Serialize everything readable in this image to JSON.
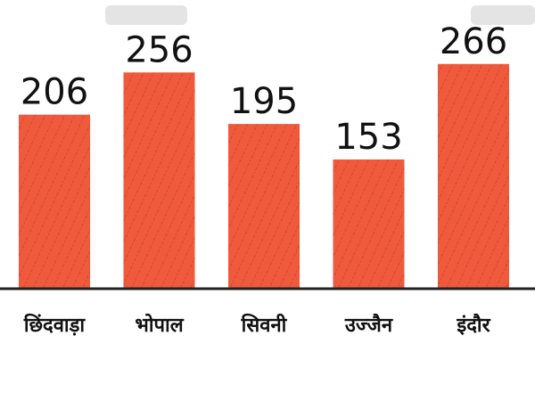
{
  "chart_data": {
    "type": "bar",
    "categories": [
      "छिंदवाड़ा",
      "भोपाल",
      "सिवनी",
      "उज्जैन",
      "इंदौर"
    ],
    "values": [
      206,
      256,
      195,
      153,
      266
    ],
    "ylim": [
      0,
      270
    ],
    "grid": false,
    "legend": "none",
    "data_labels": true,
    "bar_color": "#ef5a3c",
    "hatch_color": "#c8402a",
    "axis_color": "#222222"
  }
}
